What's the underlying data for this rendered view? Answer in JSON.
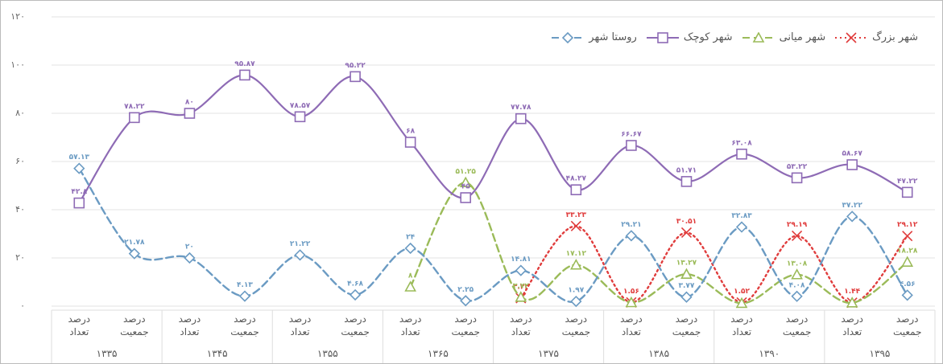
{
  "chart_data": {
    "type": "line",
    "categories": [
      "درصد تعداد",
      "درصد جمعیت",
      "درصد تعداد",
      "درصد جمعیت",
      "درصد تعداد",
      "درصد جمعیت",
      "درصد تعداد",
      "درصد جمعیت",
      "درصد تعداد",
      "درصد جمعیت",
      "درصد تعداد",
      "درصد جمعیت",
      "درصد تعداد",
      "درصد جمعیت",
      "درصد تعداد",
      "درصد جمعیت"
    ],
    "group_labels": [
      "۱۳۳۵",
      "۱۳۴۵",
      "۱۳۵۵",
      "۱۳۶۵",
      "۱۳۷۵",
      "۱۳۸۵",
      "۱۳۹۰",
      "۱۳۹۵"
    ],
    "ylim": [
      0,
      120
    ],
    "yticks": [
      {
        "value": 0,
        "label": "۰"
      },
      {
        "value": 20,
        "label": "۲۰"
      },
      {
        "value": 40,
        "label": "۴۰"
      },
      {
        "value": 60,
        "label": "۶۰"
      },
      {
        "value": 80,
        "label": "۸۰"
      },
      {
        "value": 100,
        "label": "۱۰۰"
      },
      {
        "value": 120,
        "label": "۱۲۰"
      }
    ],
    "grid": true,
    "series": [
      {
        "name": "شهر بزرگ",
        "color": "#e03c3c",
        "dash": "dotted",
        "marker": "x",
        "values": [
          null,
          null,
          null,
          null,
          null,
          null,
          null,
          null,
          3.33,
          33.23,
          1.56,
          30.51,
          1.52,
          29.19,
          1.44,
          29.12
        ],
        "value_labels": [
          null,
          null,
          null,
          null,
          null,
          null,
          null,
          null,
          "۳.۳۳",
          "۳۳.۲۳",
          "۱.۵۶",
          "۳۰.۵۱",
          "۱.۵۲",
          "۲۹.۱۹",
          "۱.۴۴",
          "۲۹.۱۲"
        ]
      },
      {
        "name": "شهر میانی",
        "color": "#9bbb59",
        "dash": "dashed",
        "marker": "triangle",
        "values": [
          null,
          null,
          null,
          null,
          null,
          null,
          8,
          51.25,
          3.72,
          17.12,
          1.5,
          13.27,
          1.2,
          13.08,
          1.4,
          18.28
        ],
        "value_labels": [
          null,
          null,
          null,
          null,
          null,
          null,
          "۸",
          "۵۱.۲۵",
          "۳.۷۲",
          "۱۷.۱۲",
          null,
          "۱۳.۲۷",
          null,
          "۱۳.۰۸",
          null,
          "۱۸.۲۸"
        ]
      },
      {
        "name": "شهر کوچک",
        "color": "#8e6bb5",
        "dash": "solid",
        "marker": "square",
        "values": [
          42.8,
          78.22,
          80,
          95.87,
          78.57,
          95.22,
          68,
          45,
          77.78,
          48.27,
          66.67,
          51.71,
          63.08,
          53.22,
          58.67,
          47.22
        ],
        "value_labels": [
          "۴۲.۸",
          "۷۸.۲۲",
          "۸۰",
          "۹۵.۸۷",
          "۷۸.۵۷",
          "۹۵.۲۲",
          "۶۸",
          "۴۵",
          "۷۷.۷۸",
          "۴۸.۲۷",
          "۶۶.۶۷",
          "۵۱.۷۱",
          "۶۳.۰۸",
          "۵۳.۲۲",
          "۵۸.۶۷",
          "۴۷.۲۲"
        ]
      },
      {
        "name": "روستا شهر",
        "color": "#6b9bc3",
        "dash": "dashed",
        "marker": "diamond",
        "values": [
          57.13,
          21.78,
          20,
          4.13,
          21.22,
          4.68,
          24,
          2.25,
          14.81,
          1.97,
          29.21,
          3.77,
          32.83,
          4.08,
          37.22,
          4.56
        ],
        "value_labels": [
          "۵۷.۱۳",
          "۲۱.۷۸",
          "۲۰",
          "۴.۱۳",
          "۲۱.۲۲",
          "۴.۶۸",
          "۲۴",
          "۲.۲۵",
          "۱۴.۸۱",
          "۱.۹۷",
          "۲۹.۲۱",
          "۳.۷۷",
          "۳۲.۸۳",
          "۴.۰۸",
          "۳۷.۲۲",
          "۴.۵۶"
        ]
      }
    ]
  }
}
